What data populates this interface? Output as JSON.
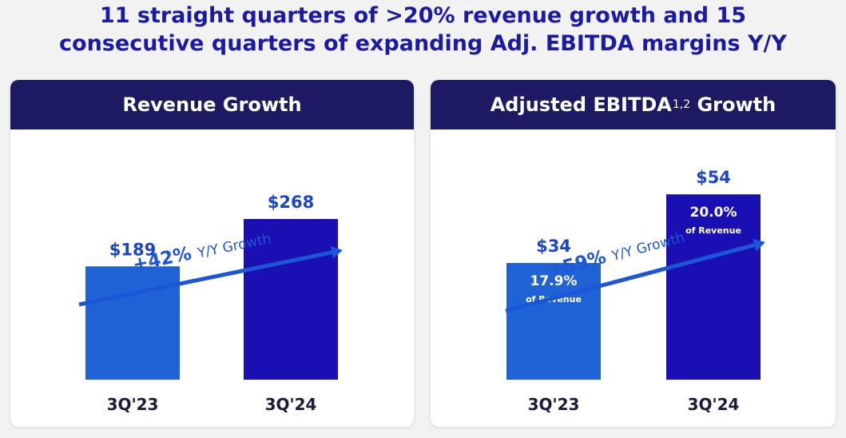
{
  "headline": {
    "line1": "11 straight quarters of >20% revenue growth and 15",
    "line2": "consecutive quarters of expanding Adj. EBITDA margins Y/Y"
  },
  "colors": {
    "header_bg": "#1c1a63",
    "bar_prior": "#1f62d6",
    "bar_current": "#1a0fb3",
    "accent_text": "#1b46c9",
    "arrow": "#1b56d8"
  },
  "chart_data": [
    {
      "type": "bar",
      "title": "Revenue Growth",
      "categories": [
        "3Q'23",
        "3Q'24"
      ],
      "values": [
        189,
        268
      ],
      "value_labels": [
        "$189",
        "$268"
      ],
      "growth": {
        "pct": "+42%",
        "text": "Y/Y Growth"
      },
      "ylim": [
        0,
        300
      ]
    },
    {
      "type": "bar",
      "title": "Adjusted EBITDA",
      "title_superscript": "1,2",
      "title_suffix": "Growth",
      "categories": [
        "3Q'23",
        "3Q'24"
      ],
      "values": [
        34,
        54
      ],
      "value_labels": [
        "$34",
        "$54"
      ],
      "margins": [
        "17.9%",
        "20.0%"
      ],
      "margin_caption": "of Revenue",
      "growth": {
        "pct": "+59%",
        "text": "Y/Y Growth"
      },
      "ylim": [
        0,
        58
      ]
    }
  ]
}
